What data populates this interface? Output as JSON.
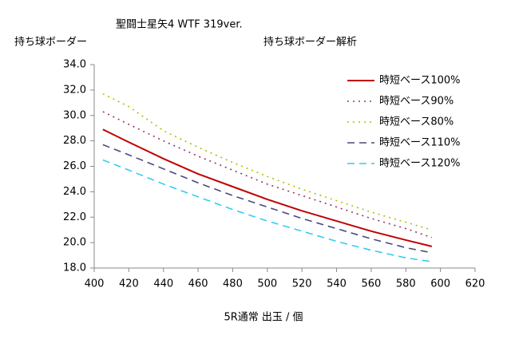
{
  "chart_data": {
    "type": "line",
    "title": "聖闘士星矢4 WTF 319ver.",
    "subtitle": "持ち球ボーダー解析",
    "y_label": "持ち球ボーダー",
    "x_label": "5R通常 出玉 / 個",
    "x": [
      405,
      420,
      440,
      460,
      480,
      500,
      520,
      540,
      560,
      580,
      595
    ],
    "series": [
      {
        "name": "時短ベース100%",
        "color": "#c00000",
        "dash": "solid",
        "values": [
          28.9,
          27.9,
          26.6,
          25.4,
          24.4,
          23.4,
          22.5,
          21.7,
          20.9,
          20.2,
          19.7
        ]
      },
      {
        "name": "時短ベース90%",
        "color": "#993366",
        "dash": "dotted",
        "values": [
          30.3,
          29.3,
          28.0,
          26.8,
          25.7,
          24.6,
          23.7,
          22.8,
          21.9,
          21.1,
          20.4
        ]
      },
      {
        "name": "時短ベース80%",
        "color": "#a8c400",
        "dash": "dotted",
        "values": [
          31.7,
          30.7,
          28.8,
          27.5,
          26.3,
          25.2,
          24.2,
          23.3,
          22.4,
          21.6,
          21.0
        ]
      },
      {
        "name": "時短ベース110%",
        "color": "#4a4a7a",
        "dash": "dashed",
        "values": [
          27.7,
          26.9,
          25.8,
          24.7,
          23.7,
          22.8,
          21.9,
          21.1,
          20.3,
          19.6,
          19.2
        ]
      },
      {
        "name": "時短ベース120%",
        "color": "#33ccee",
        "dash": "dashed",
        "values": [
          26.5,
          25.7,
          24.6,
          23.6,
          22.6,
          21.7,
          20.9,
          20.1,
          19.4,
          18.8,
          18.5
        ]
      }
    ],
    "xlim": [
      400,
      620
    ],
    "xticks": [
      400,
      420,
      440,
      460,
      480,
      500,
      520,
      540,
      560,
      580,
      600,
      620
    ],
    "ylim": [
      18,
      34
    ],
    "yticks": [
      {
        "value": 18,
        "label": "18.0"
      },
      {
        "value": 20,
        "label": "20.0"
      },
      {
        "value": 22,
        "label": "22.0"
      },
      {
        "value": 24,
        "label": "24.0"
      },
      {
        "value": 26,
        "label": "26.0"
      },
      {
        "value": 28,
        "label": "28.0"
      },
      {
        "value": 30,
        "label": "30.0"
      },
      {
        "value": 32,
        "label": "32.0"
      },
      {
        "value": 34,
        "label": "34.0"
      }
    ],
    "grid": false,
    "legend": "upper right"
  }
}
